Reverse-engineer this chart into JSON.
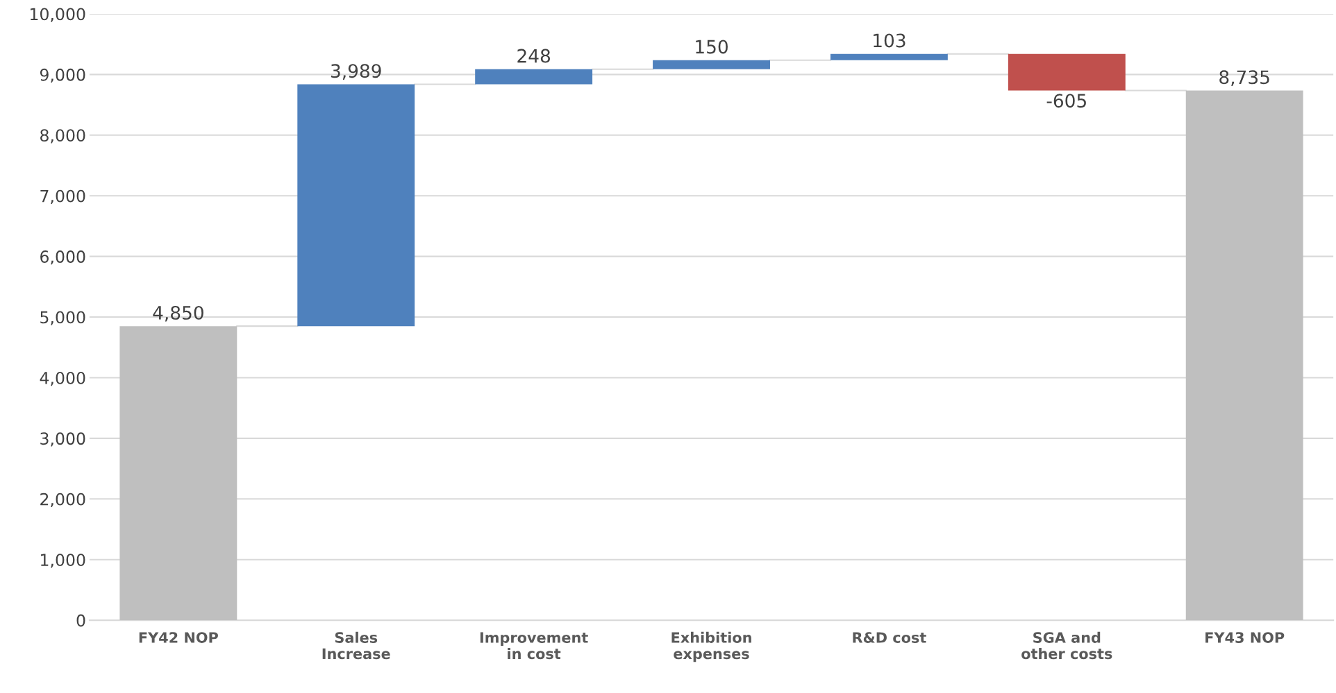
{
  "chart_data": {
    "type": "bar",
    "categories": [
      "FY42 NOP",
      "Sales\nIncrease",
      "Improvement\nin cost",
      "Exhibition\nexpenses",
      "R&D cost",
      "SGA and\nother costs",
      "FY43 NOP"
    ],
    "values": [
      4850,
      3989,
      248,
      150,
      103,
      -605,
      8735
    ],
    "base": [
      0,
      4850,
      8839,
      9087,
      9237,
      9340,
      0
    ],
    "colors": [
      "#bfbfbf",
      "#4f81bd",
      "#4f81bd",
      "#4f81bd",
      "#4f81bd",
      "#c0504d",
      "#bfbfbf"
    ],
    "value_labels": [
      "4,850",
      "3,989",
      "248",
      "150",
      "103",
      "-605",
      "8,735"
    ],
    "ylim": [
      0,
      10000
    ],
    "yticks": [
      {
        "value": 0,
        "label": "0"
      },
      {
        "value": 1000,
        "label": "1,000"
      },
      {
        "value": 2000,
        "label": "2,000"
      },
      {
        "value": 3000,
        "label": "3,000"
      },
      {
        "value": 4000,
        "label": "4,000"
      },
      {
        "value": 5000,
        "label": "5,000"
      },
      {
        "value": 6000,
        "label": "6,000"
      },
      {
        "value": 7000,
        "label": "7,000"
      },
      {
        "value": 8000,
        "label": "8,000"
      },
      {
        "value": 9000,
        "label": "9,000"
      },
      {
        "value": 10000,
        "label": "10,000"
      }
    ],
    "grid": "y"
  }
}
